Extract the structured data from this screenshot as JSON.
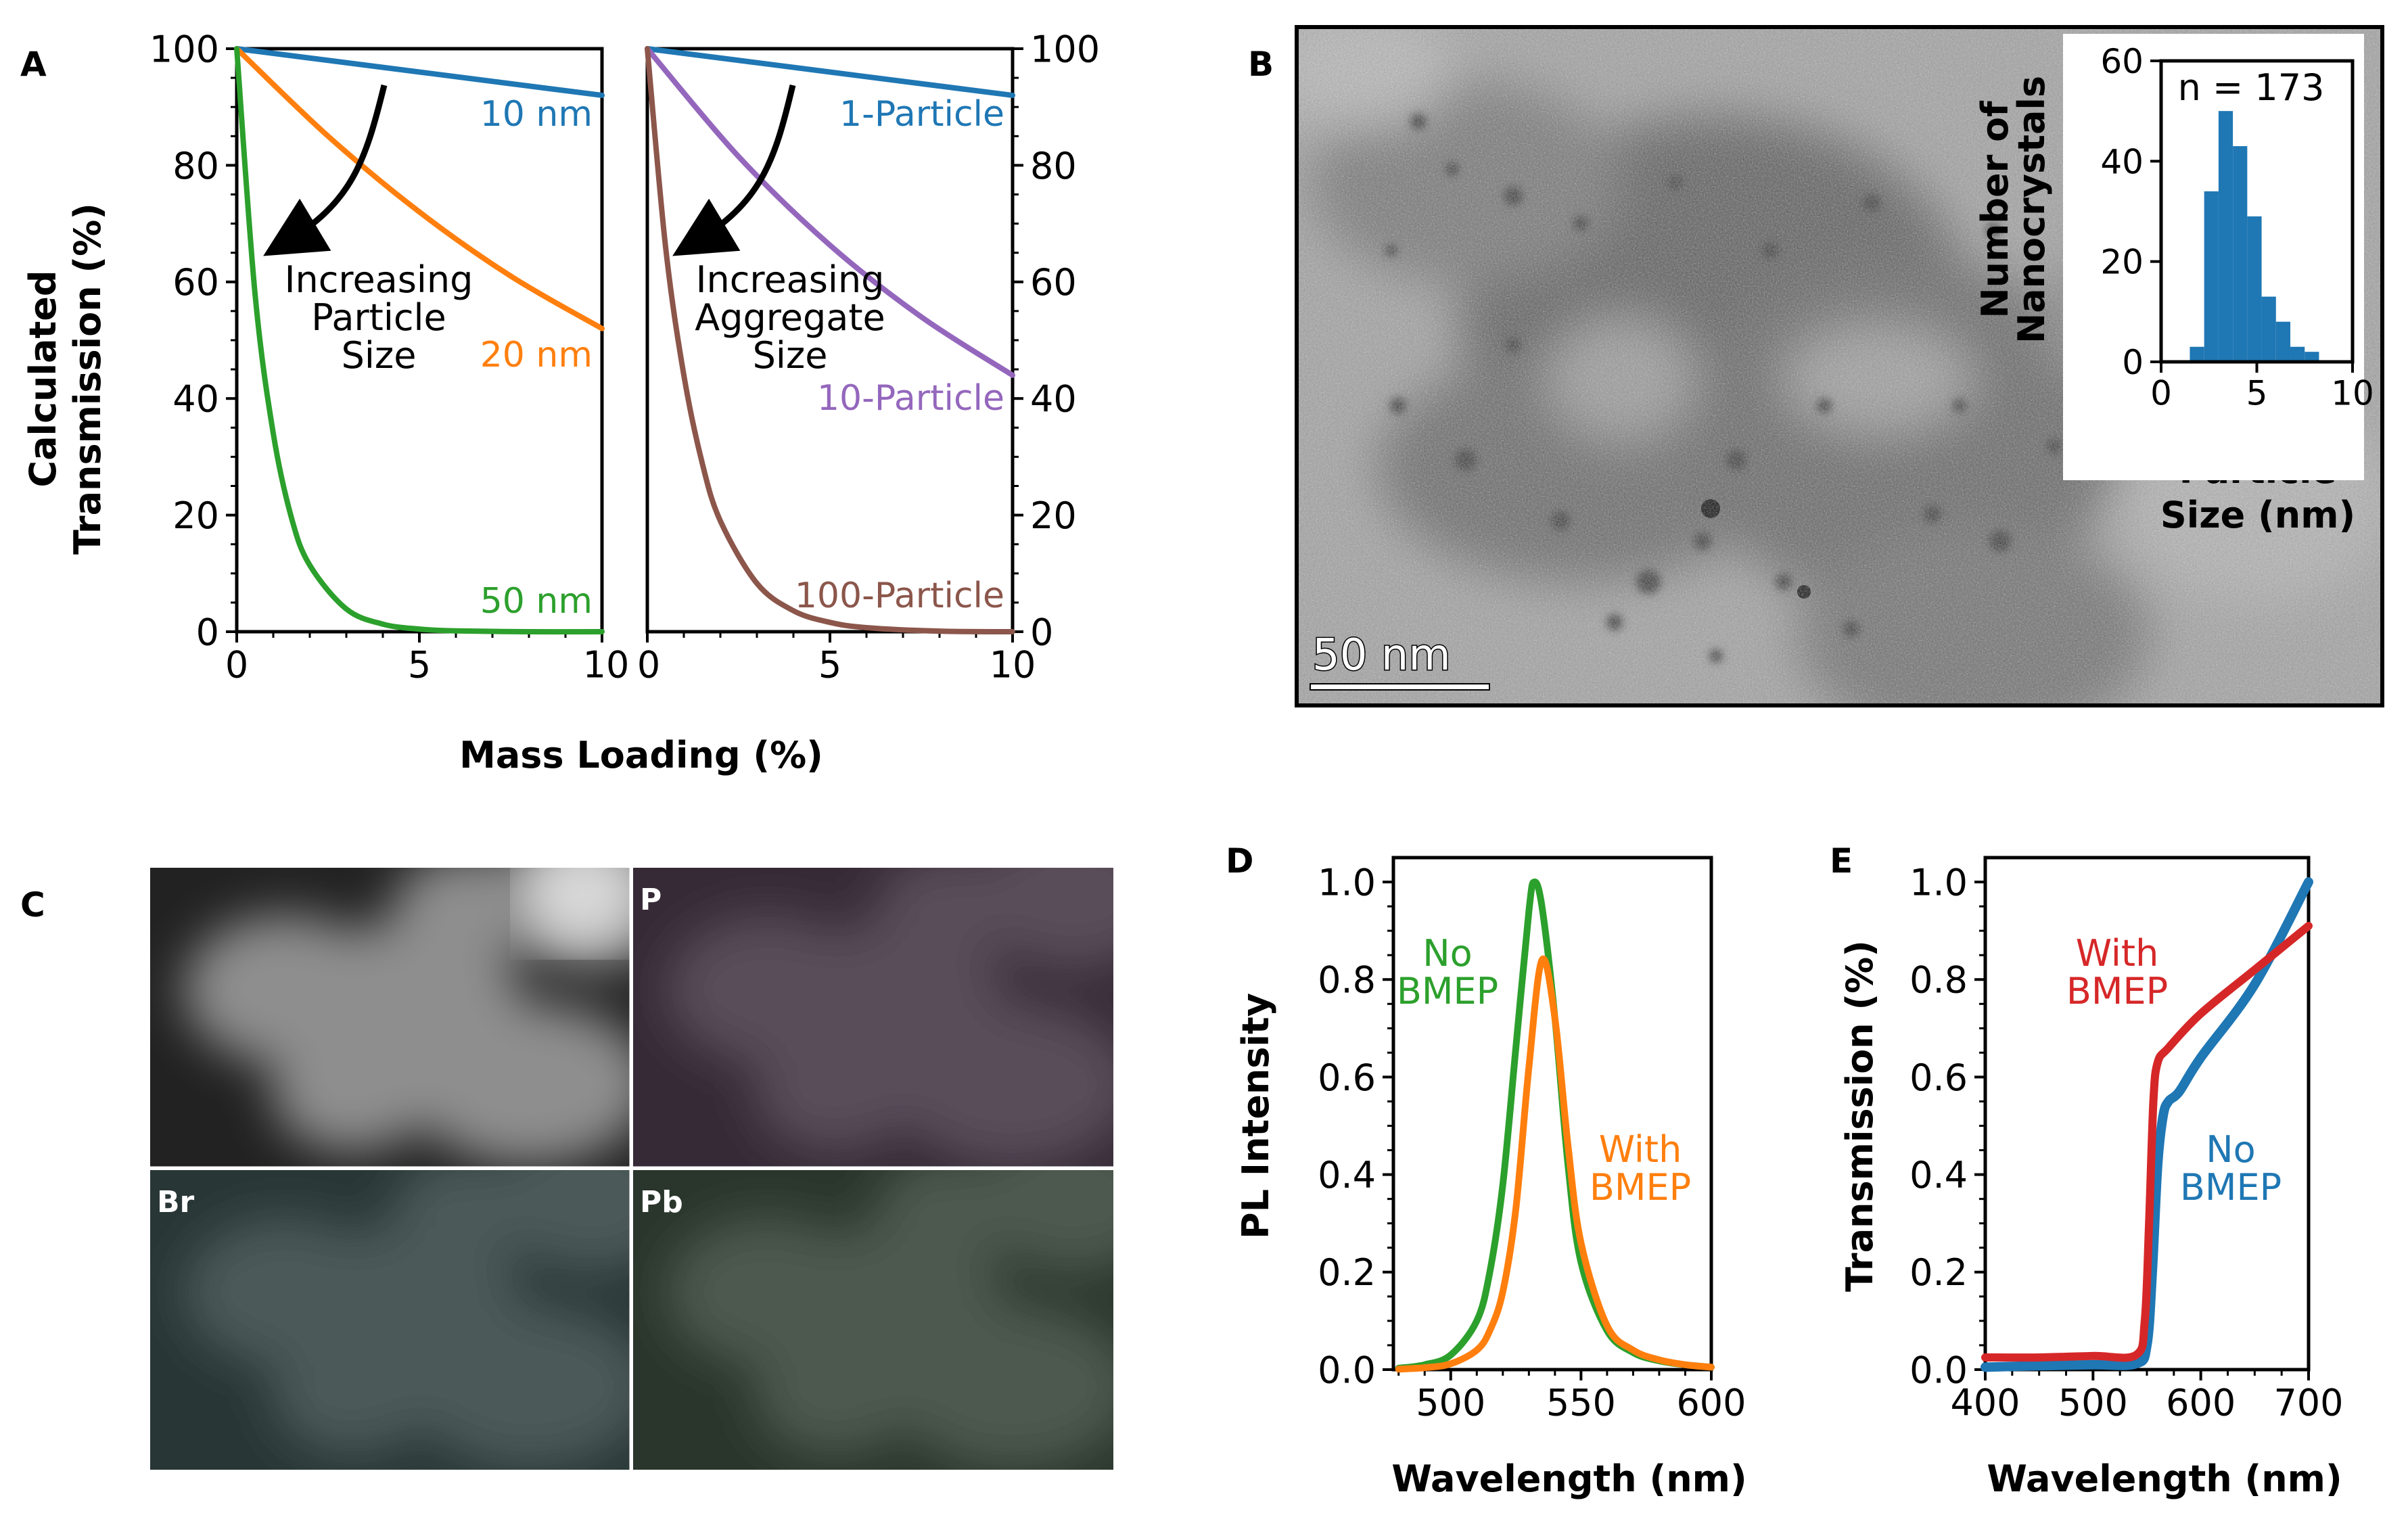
{
  "panel_letters": {
    "A": "A",
    "B": "B",
    "C": "C",
    "D": "D",
    "E": "E"
  },
  "colors": {
    "blue": "#1f77b4",
    "orange": "#ff7f0e",
    "green": "#2ca02c",
    "purple": "#9467bd",
    "brown": "#8c564b",
    "red": "#d62728"
  },
  "panelA": {
    "ylabel_line1": "Calculated",
    "ylabel_line2": "Transmission (%)",
    "xlabel": "Mass Loading (%)",
    "annot_left": [
      "Increasing",
      "Particle",
      "Size"
    ],
    "annot_right": [
      "Increasing",
      "Aggregate",
      "Size"
    ]
  },
  "panelB": {
    "scale_bar": "50 nm",
    "hist_n": "n = 173",
    "hist_ylabel_line1": "Number of",
    "hist_ylabel_line2": "Nanocrystals",
    "hist_xlabel_line1": "Particle",
    "hist_xlabel_line2": "Size (nm)"
  },
  "panelC": {
    "tiles": [
      {
        "label": "",
        "tint": "#9a9a9a"
      },
      {
        "label": "P",
        "tint": "#d46ad4"
      },
      {
        "label": "Br",
        "tint": "#5fd1d1"
      },
      {
        "label": "Pb",
        "tint": "#6fcf7b"
      }
    ]
  },
  "panelD": {
    "ylabel": "PL Intensity",
    "xlabel": "Wavelength (nm)",
    "label_no": [
      "No",
      "BMEP"
    ],
    "label_with": [
      "With",
      "BMEP"
    ]
  },
  "panelE": {
    "ylabel": "Transmission (%)",
    "xlabel": "Wavelength (nm)",
    "label_with": [
      "With",
      "BMEP"
    ],
    "label_no": [
      "No",
      "BMEP"
    ]
  },
  "chart_data": [
    {
      "id": "A-left",
      "type": "line",
      "xlabel": "Mass Loading (%)",
      "ylabel": "Calculated Transmission (%)",
      "xlim": [
        0,
        10
      ],
      "ylim": [
        0,
        100
      ],
      "xticks": [
        0,
        5,
        10
      ],
      "yticks": [
        0,
        20,
        40,
        60,
        80,
        100
      ],
      "series": [
        {
          "name": "10 nm",
          "color": "#1f77b4",
          "x": [
            0,
            2.5,
            5,
            7.5,
            10
          ],
          "y": [
            100,
            98,
            96,
            94,
            92
          ]
        },
        {
          "name": "20 nm",
          "color": "#ff7f0e",
          "x": [
            0,
            2.5,
            5,
            7.5,
            10
          ],
          "y": [
            100,
            85,
            72,
            61,
            52
          ]
        },
        {
          "name": "50 nm",
          "color": "#2ca02c",
          "x": [
            0,
            0.5,
            1,
            1.5,
            2,
            3,
            4,
            5,
            6,
            8,
            10
          ],
          "y": [
            100,
            58,
            34,
            19.5,
            11.4,
            3.9,
            1.3,
            0.45,
            0.15,
            0,
            0
          ]
        }
      ]
    },
    {
      "id": "A-right",
      "type": "line",
      "xlim": [
        0,
        10
      ],
      "ylim": [
        0,
        100
      ],
      "xticks": [
        0,
        5,
        10
      ],
      "yticks": [
        0,
        20,
        40,
        60,
        80,
        100
      ],
      "series": [
        {
          "name": "1-Particle",
          "color": "#1f77b4",
          "x": [
            0,
            2.5,
            5,
            7.5,
            10
          ],
          "y": [
            100,
            98,
            96,
            94,
            92
          ]
        },
        {
          "name": "10-Particle",
          "color": "#9467bd",
          "x": [
            0,
            2.5,
            5,
            7.5,
            10
          ],
          "y": [
            100,
            81.5,
            66.3,
            54,
            44
          ]
        },
        {
          "name": "100-Particle",
          "color": "#8c564b",
          "x": [
            0,
            0.5,
            1,
            1.5,
            2,
            3,
            4,
            5,
            6,
            8,
            10
          ],
          "y": [
            100,
            66,
            44,
            29,
            19,
            8.3,
            3.6,
            1.6,
            0.7,
            0.1,
            0
          ]
        }
      ]
    },
    {
      "id": "B-hist",
      "type": "bar",
      "xlim": [
        0,
        10
      ],
      "ylim": [
        0,
        60
      ],
      "xticks": [
        0,
        5,
        10
      ],
      "yticks": [
        0,
        20,
        40,
        60
      ],
      "bin_edges": [
        1.5,
        2.25,
        3.0,
        3.75,
        4.5,
        5.25,
        6.0,
        6.75,
        7.5,
        8.25
      ],
      "values": [
        3,
        34,
        50,
        43,
        29,
        13,
        8,
        3,
        2
      ]
    },
    {
      "id": "D",
      "type": "line",
      "xlabel": "Wavelength (nm)",
      "ylabel": "PL Intensity",
      "xlim": [
        478,
        600
      ],
      "ylim": [
        0,
        1.05
      ],
      "xticks": [
        500,
        550,
        600
      ],
      "yticks": [
        0.0,
        0.2,
        0.4,
        0.6,
        0.8,
        1.0
      ],
      "series": [
        {
          "name": "No BMEP",
          "color": "#2ca02c",
          "x": [
            480,
            490,
            500,
            510,
            515,
            520,
            525,
            530,
            532,
            535,
            540,
            545,
            550,
            560,
            570,
            580,
            590,
            600
          ],
          "y": [
            0.003,
            0.01,
            0.03,
            0.1,
            0.2,
            0.38,
            0.66,
            0.94,
            1.0,
            0.95,
            0.72,
            0.42,
            0.22,
            0.08,
            0.035,
            0.018,
            0.01,
            0.005
          ]
        },
        {
          "name": "With BMEP",
          "color": "#ff7f0e",
          "x": [
            480,
            490,
            500,
            510,
            515,
            520,
            525,
            530,
            535,
            540,
            545,
            550,
            560,
            570,
            580,
            590,
            600
          ],
          "y": [
            0.001,
            0.004,
            0.012,
            0.04,
            0.08,
            0.16,
            0.33,
            0.62,
            0.84,
            0.72,
            0.46,
            0.26,
            0.09,
            0.04,
            0.02,
            0.01,
            0.005
          ]
        }
      ]
    },
    {
      "id": "E",
      "type": "line",
      "xlabel": "Wavelength (nm)",
      "ylabel": "Transmission (%)",
      "xlim": [
        400,
        700
      ],
      "ylim": [
        0,
        1.05
      ],
      "xticks": [
        400,
        500,
        600,
        700
      ],
      "yticks": [
        0.0,
        0.2,
        0.4,
        0.6,
        0.8,
        1.0
      ],
      "series": [
        {
          "name": "With BMEP",
          "color": "#d62728",
          "x": [
            400,
            450,
            500,
            540,
            548,
            552,
            556,
            560,
            570,
            600,
            650,
            700
          ],
          "y": [
            0.025,
            0.025,
            0.028,
            0.03,
            0.1,
            0.3,
            0.55,
            0.63,
            0.66,
            0.73,
            0.82,
            0.91
          ]
        },
        {
          "name": "No BMEP",
          "color": "#1f77b4",
          "x": [
            400,
            450,
            500,
            540,
            550,
            555,
            560,
            565,
            570,
            580,
            600,
            650,
            700
          ],
          "y": [
            0.005,
            0.008,
            0.01,
            0.012,
            0.05,
            0.2,
            0.42,
            0.52,
            0.55,
            0.57,
            0.64,
            0.79,
            1.0
          ]
        }
      ]
    }
  ]
}
